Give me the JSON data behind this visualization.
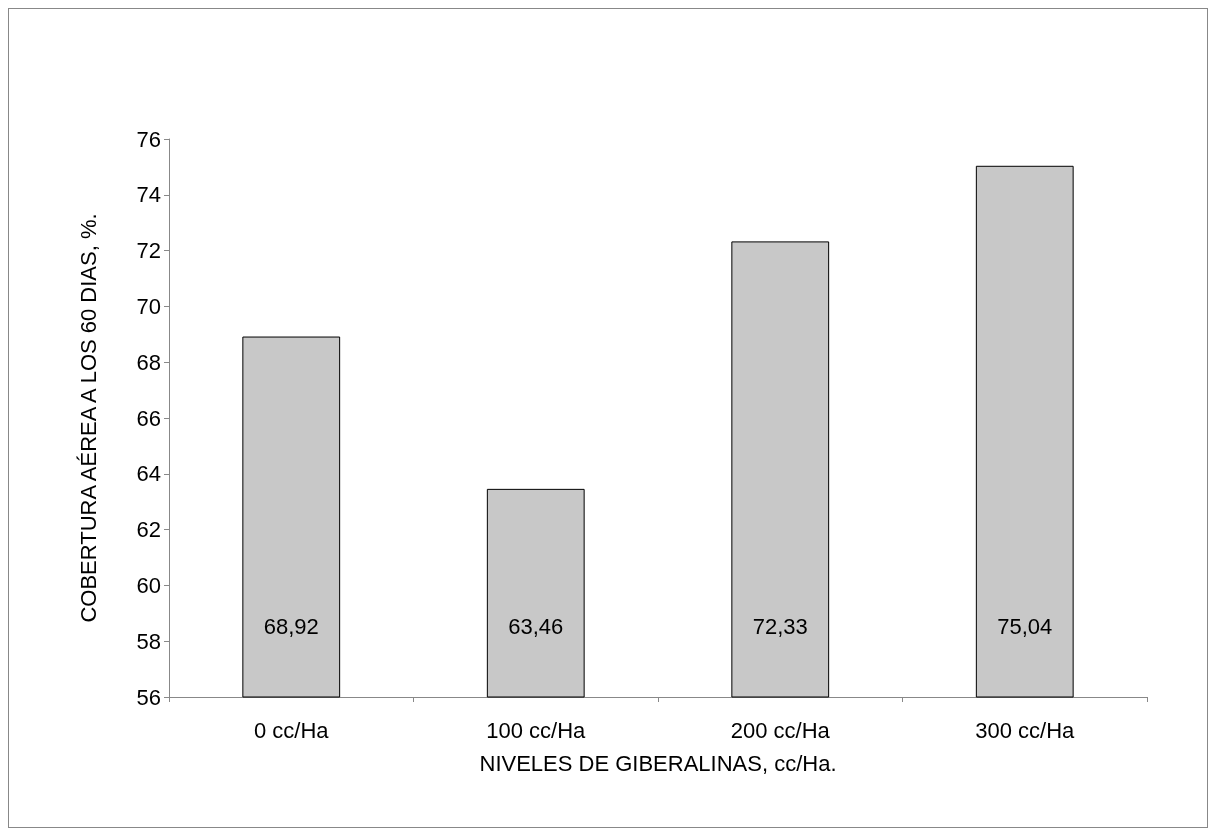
{
  "chart_data": {
    "type": "bar",
    "xlabel": "NIVELES DE GIBERALINAS, cc/Ha.",
    "ylabel": "COBERTURA AÉREA A LOS 60 DIAS, %.",
    "categories": [
      "0 cc/Ha",
      "100 cc/Ha",
      "200 cc/Ha",
      "300 cc/Ha"
    ],
    "values": [
      68.92,
      63.46,
      72.33,
      75.04
    ],
    "value_labels": [
      "68,92",
      "63,46",
      "72,33",
      "75,04"
    ],
    "color": "#c8c8c8",
    "ylim": [
      56,
      76
    ],
    "yticks": [
      56,
      58,
      60,
      62,
      64,
      66,
      68,
      70,
      72,
      74,
      76
    ],
    "grid": false
  }
}
